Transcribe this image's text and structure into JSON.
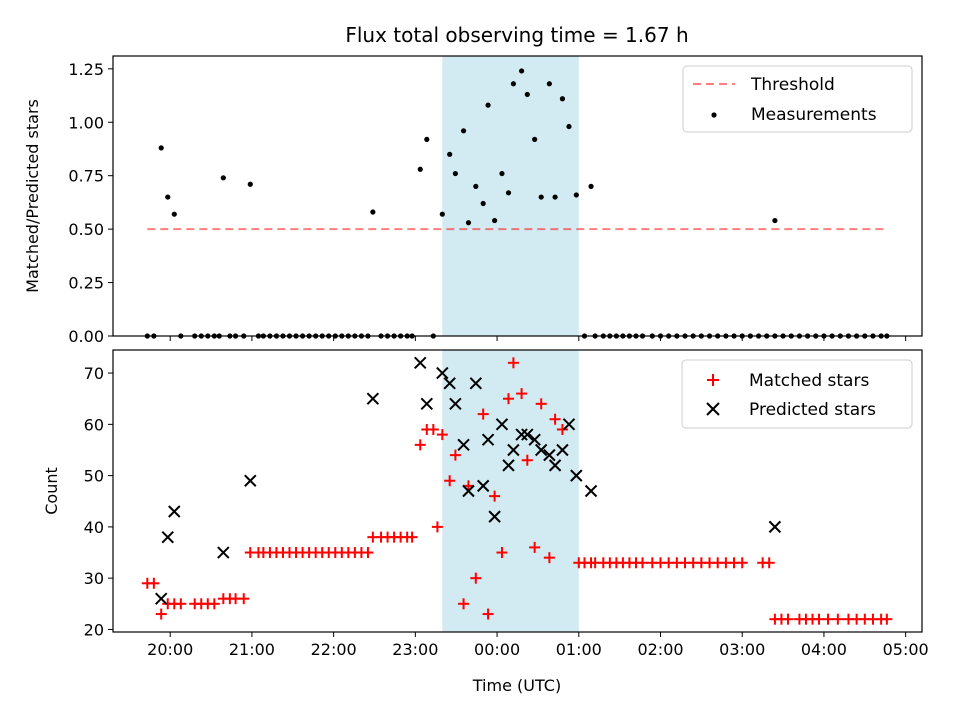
{
  "chart_data": {
    "title": "Flux total observing time = 1.67 h",
    "xlabel": "Time (UTC)",
    "x_unit": "hours since 19:00 UTC",
    "xlim": [
      0.3,
      10.2
    ],
    "x_ticks": [
      1,
      2,
      3,
      4,
      5,
      6,
      7,
      8,
      9,
      10
    ],
    "x_tick_labels": [
      "20:00",
      "21:00",
      "22:00",
      "23:00",
      "00:00",
      "01:00",
      "02:00",
      "03:00",
      "04:00",
      "05:00"
    ],
    "highlight_span": [
      4.33,
      6.0
    ],
    "highlight_color": "#add8e6",
    "panels": [
      {
        "id": "ratio",
        "type": "scatter",
        "ylabel": "Matched/Predicted stars",
        "ylim": [
          0,
          1.31
        ],
        "y_ticks": [
          "0.00",
          "0.25",
          "0.50",
          "0.75",
          "1.00",
          "1.25"
        ],
        "legend_position": "top-right",
        "threshold": {
          "name": "Threshold",
          "value": 0.5,
          "x_range": [
            0.72,
            9.77
          ],
          "color": "#ff0000",
          "style": "dashed"
        },
        "series": [
          {
            "name": "Measurements",
            "color": "#000000",
            "marker": "dot",
            "points": [
              [
                0.72,
                0
              ],
              [
                0.8,
                0
              ],
              [
                0.89,
                0.88
              ],
              [
                0.97,
                0.65
              ],
              [
                1.05,
                0.57
              ],
              [
                1.13,
                0
              ],
              [
                1.3,
                0
              ],
              [
                1.38,
                0
              ],
              [
                1.46,
                0
              ],
              [
                1.54,
                0
              ],
              [
                1.6,
                0
              ],
              [
                1.65,
                0.74
              ],
              [
                1.73,
                0
              ],
              [
                1.8,
                0
              ],
              [
                1.9,
                0
              ],
              [
                1.98,
                0.71
              ],
              [
                2.08,
                0
              ],
              [
                2.14,
                0
              ],
              [
                2.22,
                0
              ],
              [
                2.3,
                0
              ],
              [
                2.38,
                0
              ],
              [
                2.46,
                0
              ],
              [
                2.54,
                0
              ],
              [
                2.62,
                0
              ],
              [
                2.7,
                0
              ],
              [
                2.78,
                0
              ],
              [
                2.86,
                0
              ],
              [
                2.94,
                0
              ],
              [
                3.02,
                0
              ],
              [
                3.1,
                0
              ],
              [
                3.18,
                0
              ],
              [
                3.26,
                0
              ],
              [
                3.34,
                0
              ],
              [
                3.42,
                0
              ],
              [
                3.48,
                0.58
              ],
              [
                3.58,
                0
              ],
              [
                3.66,
                0
              ],
              [
                3.74,
                0
              ],
              [
                3.82,
                0
              ],
              [
                3.9,
                0
              ],
              [
                3.96,
                0
              ],
              [
                4.06,
                0.78
              ],
              [
                4.14,
                0.92
              ],
              [
                4.22,
                0
              ],
              [
                4.33,
                0.57
              ],
              [
                4.42,
                0.85
              ],
              [
                4.49,
                0.76
              ],
              [
                4.59,
                0.96
              ],
              [
                4.65,
                0.53
              ],
              [
                4.74,
                0.7
              ],
              [
                4.83,
                0.62
              ],
              [
                4.89,
                1.08
              ],
              [
                4.97,
                0.54
              ],
              [
                5.06,
                0.76
              ],
              [
                5.14,
                0.67
              ],
              [
                5.2,
                1.18
              ],
              [
                5.3,
                1.24
              ],
              [
                5.37,
                1.13
              ],
              [
                5.46,
                0.92
              ],
              [
                5.54,
                0.65
              ],
              [
                5.64,
                1.18
              ],
              [
                5.71,
                0.65
              ],
              [
                5.8,
                1.11
              ],
              [
                5.88,
                0.98
              ],
              [
                5.97,
                0.66
              ],
              [
                6.15,
                0.7
              ],
              [
                6.07,
                0
              ],
              [
                6.2,
                0
              ],
              [
                6.3,
                0
              ],
              [
                6.38,
                0
              ],
              [
                6.46,
                0
              ],
              [
                6.54,
                0
              ],
              [
                6.62,
                0
              ],
              [
                6.7,
                0
              ],
              [
                6.78,
                0
              ],
              [
                6.9,
                0
              ],
              [
                7.0,
                0
              ],
              [
                7.1,
                0
              ],
              [
                7.2,
                0
              ],
              [
                7.3,
                0
              ],
              [
                7.4,
                0
              ],
              [
                7.5,
                0
              ],
              [
                7.6,
                0
              ],
              [
                7.7,
                0
              ],
              [
                7.8,
                0
              ],
              [
                7.9,
                0
              ],
              [
                8.0,
                0
              ],
              [
                8.1,
                0
              ],
              [
                8.2,
                0
              ],
              [
                8.3,
                0
              ],
              [
                8.4,
                0
              ],
              [
                8.5,
                0
              ],
              [
                8.6,
                0
              ],
              [
                8.7,
                0
              ],
              [
                8.8,
                0
              ],
              [
                8.9,
                0
              ],
              [
                9.0,
                0
              ],
              [
                9.1,
                0
              ],
              [
                9.2,
                0
              ],
              [
                9.3,
                0
              ],
              [
                9.4,
                0
              ],
              [
                9.5,
                0
              ],
              [
                9.6,
                0
              ],
              [
                9.7,
                0
              ],
              [
                9.77,
                0
              ],
              [
                8.4,
                0.54
              ]
            ]
          }
        ]
      },
      {
        "id": "counts",
        "type": "scatter",
        "ylabel": "Count",
        "ylim": [
          19.5,
          74.5
        ],
        "y_ticks": [
          "20",
          "30",
          "40",
          "50",
          "60",
          "70"
        ],
        "legend_position": "top-right",
        "series": [
          {
            "name": "Matched stars",
            "color": "#ff0000",
            "marker": "plus",
            "points": [
              [
                0.72,
                29
              ],
              [
                0.8,
                29
              ],
              [
                0.89,
                23
              ],
              [
                0.97,
                25
              ],
              [
                1.05,
                25
              ],
              [
                1.13,
                25
              ],
              [
                1.3,
                25
              ],
              [
                1.38,
                25
              ],
              [
                1.46,
                25
              ],
              [
                1.54,
                25
              ],
              [
                1.65,
                26
              ],
              [
                1.73,
                26
              ],
              [
                1.8,
                26
              ],
              [
                1.9,
                26
              ],
              [
                1.98,
                35
              ],
              [
                2.08,
                35
              ],
              [
                2.14,
                35
              ],
              [
                2.22,
                35
              ],
              [
                2.3,
                35
              ],
              [
                2.38,
                35
              ],
              [
                2.46,
                35
              ],
              [
                2.54,
                35
              ],
              [
                2.62,
                35
              ],
              [
                2.7,
                35
              ],
              [
                2.78,
                35
              ],
              [
                2.86,
                35
              ],
              [
                2.94,
                35
              ],
              [
                3.02,
                35
              ],
              [
                3.1,
                35
              ],
              [
                3.18,
                35
              ],
              [
                3.26,
                35
              ],
              [
                3.34,
                35
              ],
              [
                3.42,
                35
              ],
              [
                3.48,
                38
              ],
              [
                3.58,
                38
              ],
              [
                3.66,
                38
              ],
              [
                3.74,
                38
              ],
              [
                3.82,
                38
              ],
              [
                3.9,
                38
              ],
              [
                3.96,
                38
              ],
              [
                4.06,
                56
              ],
              [
                4.14,
                59
              ],
              [
                4.22,
                59
              ],
              [
                4.27,
                40
              ],
              [
                4.33,
                58
              ],
              [
                4.42,
                49
              ],
              [
                4.49,
                54
              ],
              [
                4.59,
                25
              ],
              [
                4.65,
                48
              ],
              [
                4.74,
                30
              ],
              [
                4.83,
                62
              ],
              [
                4.89,
                23
              ],
              [
                4.97,
                46
              ],
              [
                5.06,
                35
              ],
              [
                5.14,
                65
              ],
              [
                5.2,
                72
              ],
              [
                5.3,
                66
              ],
              [
                5.37,
                53
              ],
              [
                5.46,
                36
              ],
              [
                5.54,
                64
              ],
              [
                5.64,
                34
              ],
              [
                5.71,
                61
              ],
              [
                5.8,
                59
              ],
              [
                6.0,
                33
              ],
              [
                6.07,
                33
              ],
              [
                6.15,
                33
              ],
              [
                6.2,
                33
              ],
              [
                6.3,
                33
              ],
              [
                6.38,
                33
              ],
              [
                6.46,
                33
              ],
              [
                6.54,
                33
              ],
              [
                6.62,
                33
              ],
              [
                6.7,
                33
              ],
              [
                6.78,
                33
              ],
              [
                6.9,
                33
              ],
              [
                7.0,
                33
              ],
              [
                7.1,
                33
              ],
              [
                7.2,
                33
              ],
              [
                7.3,
                33
              ],
              [
                7.4,
                33
              ],
              [
                7.5,
                33
              ],
              [
                7.6,
                33
              ],
              [
                7.7,
                33
              ],
              [
                7.8,
                33
              ],
              [
                7.9,
                33
              ],
              [
                8.0,
                33
              ],
              [
                8.25,
                33
              ],
              [
                8.33,
                33
              ],
              [
                8.4,
                22
              ],
              [
                8.48,
                22
              ],
              [
                8.56,
                22
              ],
              [
                8.7,
                22
              ],
              [
                8.78,
                22
              ],
              [
                8.86,
                22
              ],
              [
                8.94,
                22
              ],
              [
                9.05,
                22
              ],
              [
                9.17,
                22
              ],
              [
                9.3,
                22
              ],
              [
                9.4,
                22
              ],
              [
                9.5,
                22
              ],
              [
                9.6,
                22
              ],
              [
                9.7,
                22
              ],
              [
                9.77,
                22
              ]
            ]
          },
          {
            "name": "Predicted stars",
            "color": "#000000",
            "marker": "x",
            "points": [
              [
                0.89,
                26
              ],
              [
                0.97,
                38
              ],
              [
                1.05,
                43
              ],
              [
                1.65,
                35
              ],
              [
                1.98,
                49
              ],
              [
                3.48,
                65
              ],
              [
                4.06,
                72
              ],
              [
                4.14,
                64
              ],
              [
                4.33,
                70
              ],
              [
                4.42,
                68
              ],
              [
                4.49,
                64
              ],
              [
                4.59,
                56
              ],
              [
                4.65,
                47
              ],
              [
                4.74,
                68
              ],
              [
                4.83,
                48
              ],
              [
                4.89,
                57
              ],
              [
                4.97,
                42
              ],
              [
                5.06,
                60
              ],
              [
                5.14,
                52
              ],
              [
                5.2,
                55
              ],
              [
                5.3,
                58
              ],
              [
                5.37,
                58
              ],
              [
                5.46,
                57
              ],
              [
                5.54,
                55
              ],
              [
                5.64,
                54
              ],
              [
                5.71,
                52
              ],
              [
                5.8,
                55
              ],
              [
                5.88,
                60
              ],
              [
                5.97,
                50
              ],
              [
                6.15,
                47
              ],
              [
                8.4,
                40
              ]
            ]
          }
        ]
      }
    ]
  }
}
